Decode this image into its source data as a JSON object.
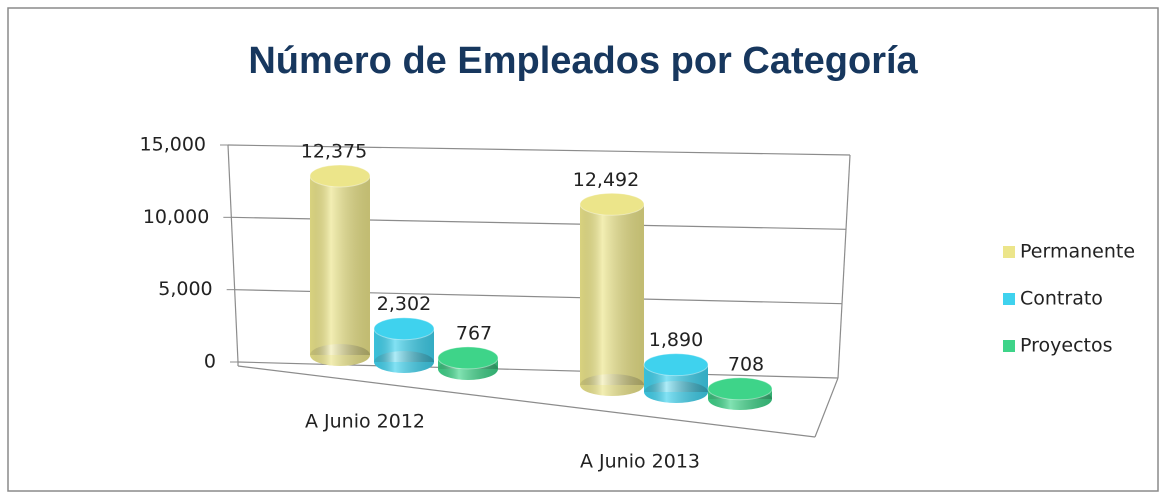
{
  "chart_data": {
    "type": "bar3d",
    "title": "Número de Empleados por Categoría",
    "categories": [
      "A Junio 2012",
      "A Junio 2013"
    ],
    "series": [
      {
        "name": "Permanente",
        "color": "#ece58a",
        "values": [
          12375,
          12492
        ],
        "value_labels": [
          "12,375",
          "12,492"
        ]
      },
      {
        "name": "Contrato",
        "color": "#3fd2ee",
        "values": [
          2302,
          1890
        ],
        "value_labels": [
          "2,302",
          "1,890"
        ]
      },
      {
        "name": "Proyectos",
        "color": "#3ed489",
        "values": [
          767,
          708
        ],
        "value_labels": [
          "767",
          "708"
        ]
      }
    ],
    "ylim": [
      0,
      15000
    ],
    "yticks": [
      0,
      {
        "value": 5000,
        "label": "5,000"
      },
      {
        "value": 10000,
        "label": "10,000"
      },
      {
        "value": 15000,
        "label": "15,000"
      }
    ],
    "grid": true,
    "legend": "right"
  }
}
